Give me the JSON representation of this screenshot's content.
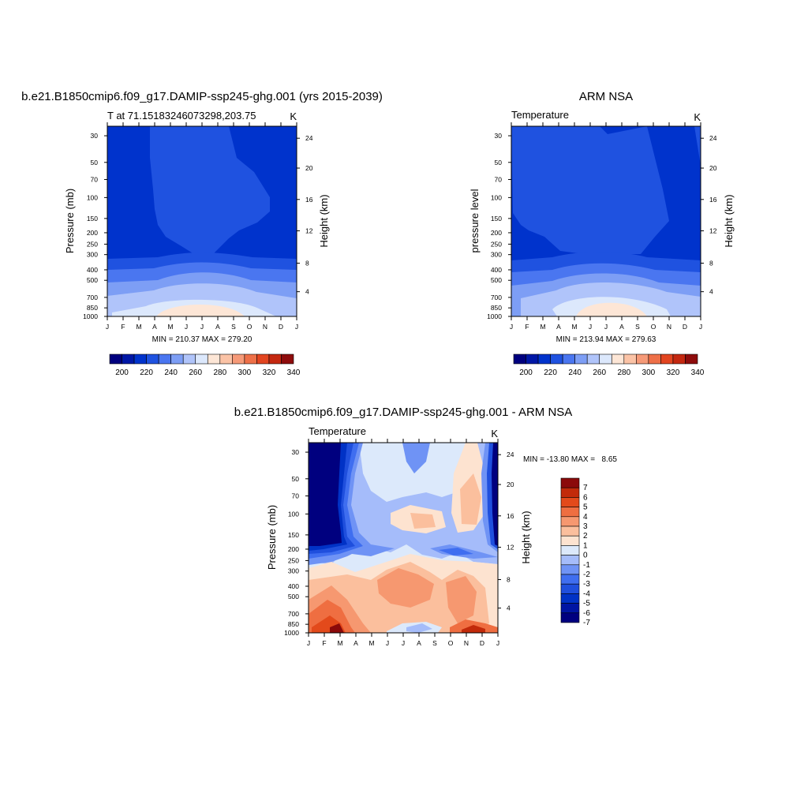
{
  "chart_data": [
    {
      "type": "heatmap",
      "title": "b.e21.B1850cmip6.f09_g17.DAMIP-ssp245-ghg.001 (yrs 2015-2039)",
      "subtitle": "T at 71.15183246073298,203.75",
      "units": "K",
      "xlabel": "",
      "ylabel": "Pressure (mb)",
      "ylabel_right": "Height (km)",
      "months": [
        "J",
        "F",
        "M",
        "A",
        "M",
        "J",
        "J",
        "A",
        "S",
        "O",
        "N",
        "D",
        "J"
      ],
      "pressure_ticks": [
        "30",
        "50",
        "70",
        "100",
        "150",
        "200",
        "250",
        "300",
        "400",
        "500",
        "700",
        "850",
        "1000"
      ],
      "height_ticks": [
        "24",
        "20",
        "16",
        "12",
        "8",
        "4"
      ],
      "stats": "MIN = 210.37 MAX = 279.20",
      "zrange": [
        210.37,
        279.2
      ],
      "colorbar_labels": [
        "200",
        "220",
        "240",
        "260",
        "280",
        "300",
        "320",
        "340"
      ]
    },
    {
      "type": "heatmap",
      "title": "ARM NSA",
      "subtitle": "Temperature",
      "units": "K",
      "xlabel": "",
      "ylabel": "pressure level",
      "ylabel_right": "Height (km)",
      "months": [
        "J",
        "F",
        "M",
        "A",
        "M",
        "J",
        "J",
        "A",
        "S",
        "O",
        "N",
        "D",
        "J"
      ],
      "pressure_ticks": [
        "30",
        "50",
        "70",
        "100",
        "150",
        "200",
        "250",
        "300",
        "400",
        "500",
        "700",
        "850",
        "1000"
      ],
      "height_ticks": [
        "24",
        "20",
        "16",
        "12",
        "8",
        "4"
      ],
      "stats": "MIN = 213.94 MAX = 279.63",
      "zrange": [
        213.94,
        279.63
      ],
      "colorbar_labels": [
        "200",
        "220",
        "240",
        "260",
        "280",
        "300",
        "320",
        "340"
      ]
    },
    {
      "type": "heatmap",
      "title": "b.e21.B1850cmip6.f09_g17.DAMIP-ssp245-ghg.001 - ARM NSA",
      "subtitle": "Temperature",
      "units": "K",
      "xlabel": "",
      "ylabel": "Pressure (mb)",
      "ylabel_right": "Height (km)",
      "months": [
        "J",
        "F",
        "M",
        "A",
        "M",
        "J",
        "J",
        "A",
        "S",
        "O",
        "N",
        "D",
        "J"
      ],
      "pressure_ticks": [
        "30",
        "50",
        "70",
        "100",
        "150",
        "200",
        "250",
        "300",
        "400",
        "500",
        "700",
        "850",
        "1000"
      ],
      "height_ticks": [
        "24",
        "20",
        "16",
        "12",
        "8",
        "4"
      ],
      "stats": "MIN = -13.80 MAX =   8.65",
      "zrange": [
        -13.8,
        8.65
      ],
      "colorbar_labels": [
        "7",
        "6",
        "5",
        "4",
        "3",
        "2",
        "1",
        "0",
        "-1",
        "-2",
        "-3",
        "-4",
        "-5",
        "-6",
        "-7"
      ]
    }
  ],
  "colors": {
    "temperature_scale": [
      "#00007f",
      "#0017a6",
      "#0033cc",
      "#1f52e0",
      "#4a76f0",
      "#7d9ef5",
      "#b0c4fa",
      "#dce8fc",
      "#fde6d6",
      "#fbc3a6",
      "#f69a78",
      "#ee7048",
      "#e24520",
      "#c42810",
      "#8e0c0c"
    ],
    "difference_scale": [
      "#00007f",
      "#0015a3",
      "#0032c6",
      "#1f4fdd",
      "#3f6ef0",
      "#6f93f5",
      "#a5bcfa",
      "#dce9fb",
      "#fde3d0",
      "#fbbf9d",
      "#f69870",
      "#ef6e41",
      "#e34a1b",
      "#c22a0a",
      "#8b0a0a"
    ]
  }
}
